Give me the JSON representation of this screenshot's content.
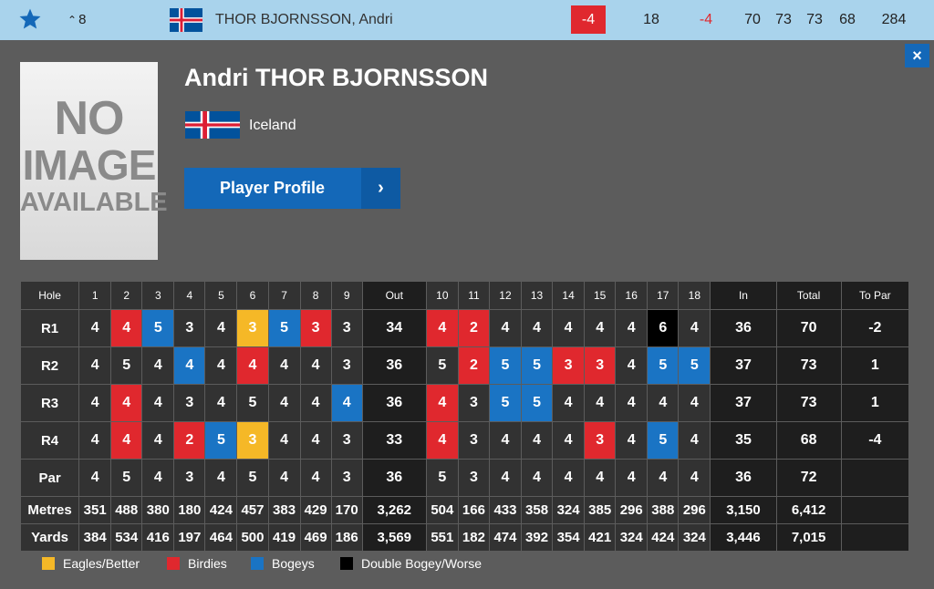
{
  "colors": {
    "birdie": "#e0282e",
    "bogey": "#1a74c4",
    "eagle": "#f5b827",
    "double": "#000000",
    "accent": "#1468b8"
  },
  "topbar": {
    "star_icon": "star-icon",
    "movement": "8",
    "movement_icon": "chevron-up-icon",
    "player_name": "THOR BJORNSSON, Andri",
    "to_par": "-4",
    "thru": "18",
    "today": "-4",
    "rounds": [
      "70",
      "73",
      "73",
      "68"
    ],
    "total": "284"
  },
  "close_label": "×",
  "player": {
    "image_text": [
      "NO",
      "IMAGE",
      "AVAILABLE"
    ],
    "name": "Andri THOR BJORNSSON",
    "country": "Iceland",
    "profile_button": "Player Profile",
    "profile_arrow": "›"
  },
  "scorecard": {
    "headers": [
      "Hole",
      "1",
      "2",
      "3",
      "4",
      "5",
      "6",
      "7",
      "8",
      "9",
      "Out",
      "10",
      "11",
      "12",
      "13",
      "14",
      "15",
      "16",
      "17",
      "18",
      "In",
      "Total",
      "To Par"
    ],
    "rounds": [
      {
        "label": "R1",
        "scores": [
          "4",
          "4",
          "5",
          "3",
          "4",
          "3",
          "5",
          "3",
          "3"
        ],
        "out": "34",
        "scores_in": [
          "4",
          "2",
          "4",
          "4",
          "4",
          "4",
          "4",
          "6",
          "4"
        ],
        "in": "36",
        "total": "70",
        "topar": "-2",
        "types": [
          "",
          "birdie",
          "bogey",
          "",
          "",
          "eagle",
          "bogey",
          "birdie",
          "",
          "birdie",
          "birdie",
          "",
          "",
          "",
          "",
          "",
          "double",
          ""
        ]
      },
      {
        "label": "R2",
        "scores": [
          "4",
          "5",
          "4",
          "4",
          "4",
          "4",
          "4",
          "4",
          "3"
        ],
        "out": "36",
        "scores_in": [
          "5",
          "2",
          "5",
          "5",
          "3",
          "3",
          "4",
          "5",
          "5"
        ],
        "in": "37",
        "total": "73",
        "topar": "1",
        "types": [
          "",
          "",
          "",
          "bogey",
          "",
          "birdie",
          "",
          "",
          "",
          "",
          "birdie",
          "bogey",
          "bogey",
          "birdie",
          "birdie",
          "",
          "bogey",
          "bogey"
        ]
      },
      {
        "label": "R3",
        "scores": [
          "4",
          "4",
          "4",
          "3",
          "4",
          "5",
          "4",
          "4",
          "4"
        ],
        "out": "36",
        "scores_in": [
          "4",
          "3",
          "5",
          "5",
          "4",
          "4",
          "4",
          "4",
          "4"
        ],
        "in": "37",
        "total": "73",
        "topar": "1",
        "types": [
          "",
          "birdie",
          "",
          "",
          "",
          "",
          "",
          "",
          "bogey",
          "birdie",
          "",
          "bogey",
          "bogey",
          "",
          "",
          "",
          "",
          ""
        ]
      },
      {
        "label": "R4",
        "scores": [
          "4",
          "4",
          "4",
          "2",
          "5",
          "3",
          "4",
          "4",
          "3"
        ],
        "out": "33",
        "scores_in": [
          "4",
          "3",
          "4",
          "4",
          "4",
          "3",
          "4",
          "5",
          "4"
        ],
        "in": "35",
        "total": "68",
        "topar": "-4",
        "types": [
          "",
          "birdie",
          "",
          "birdie",
          "bogey",
          "eagle",
          "",
          "",
          "",
          "birdie",
          "",
          "",
          "",
          "",
          "birdie",
          "",
          "bogey",
          ""
        ]
      }
    ],
    "par": {
      "label": "Par",
      "values": [
        "4",
        "5",
        "4",
        "3",
        "4",
        "5",
        "4",
        "4",
        "3"
      ],
      "out": "36",
      "values_in": [
        "5",
        "3",
        "4",
        "4",
        "4",
        "4",
        "4",
        "4",
        "4"
      ],
      "in": "36",
      "total": "72"
    },
    "metres": {
      "label": "Metres",
      "values": [
        "351",
        "488",
        "380",
        "180",
        "424",
        "457",
        "383",
        "429",
        "170"
      ],
      "out": "3,262",
      "values_in": [
        "504",
        "166",
        "433",
        "358",
        "324",
        "385",
        "296",
        "388",
        "296"
      ],
      "in": "3,150",
      "total": "6,412"
    },
    "yards": {
      "label": "Yards",
      "values": [
        "384",
        "534",
        "416",
        "197",
        "464",
        "500",
        "419",
        "469",
        "186"
      ],
      "out": "3,569",
      "values_in": [
        "551",
        "182",
        "474",
        "392",
        "354",
        "421",
        "324",
        "424",
        "324"
      ],
      "in": "3,446",
      "total": "7,015"
    }
  },
  "legend": [
    {
      "label": "Eagles/Better",
      "color": "#f5b827"
    },
    {
      "label": "Birdies",
      "color": "#e0282e"
    },
    {
      "label": "Bogeys",
      "color": "#1a74c4"
    },
    {
      "label": "Double Bogey/Worse",
      "color": "#000000"
    }
  ]
}
